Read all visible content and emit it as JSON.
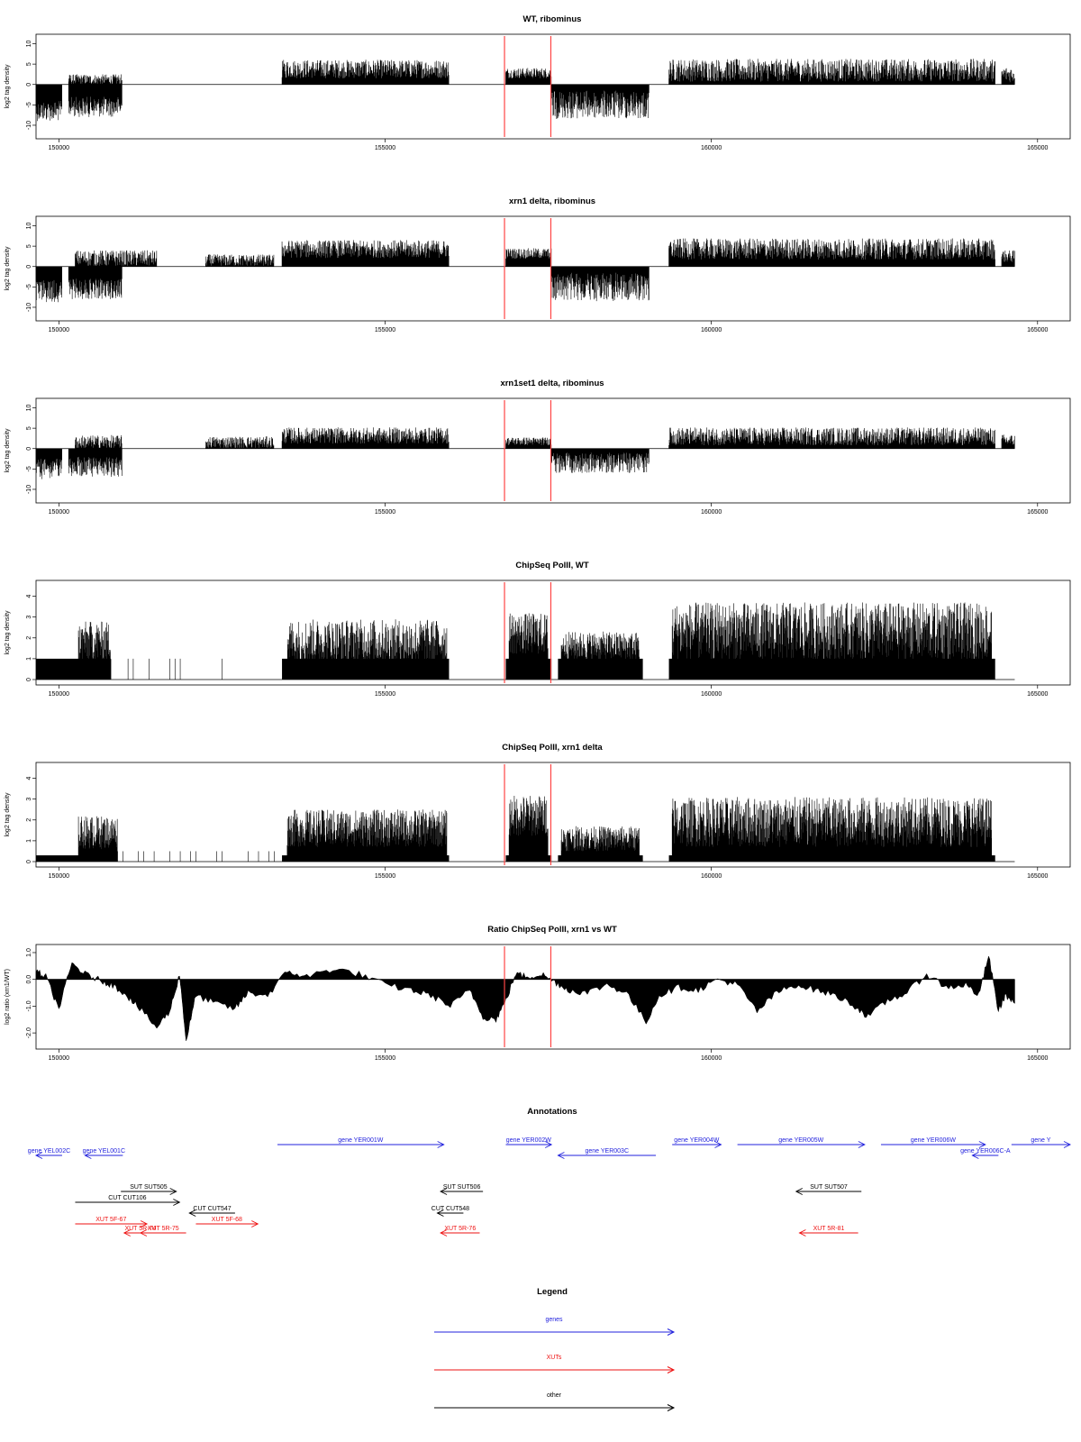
{
  "panels": [
    {
      "title": "WT, ribominus",
      "ylabel": "log2 tag density",
      "type": "signed_bars",
      "yticks": [
        "10",
        "5",
        "0",
        "-5",
        "-10"
      ],
      "ytick_values": [
        10,
        5,
        0,
        -5,
        -10
      ],
      "ylim": [
        -12,
        11
      ],
      "xticks": [
        "150000",
        "155000",
        "160000",
        "165000"
      ],
      "xlim": [
        149650,
        165500
      ]
    },
    {
      "title": "xrn1 delta, ribominus",
      "ylabel": "log2 tag density",
      "type": "signed_bars",
      "yticks": [
        "10",
        "5",
        "0",
        "-5",
        "-10"
      ],
      "ytick_values": [
        10,
        5,
        0,
        -5,
        -10
      ],
      "ylim": [
        -12,
        11
      ],
      "xticks": [
        "150000",
        "155000",
        "160000",
        "165000"
      ],
      "xlim": [
        149650,
        165500
      ]
    },
    {
      "title": "xrn1set1 delta, ribominus",
      "ylabel": "log2 tag density",
      "type": "signed_bars",
      "yticks": [
        "10",
        "5",
        "0",
        "-5",
        "-10"
      ],
      "ytick_values": [
        10,
        5,
        0,
        -5,
        -10
      ],
      "ylim": [
        -12,
        11
      ],
      "xticks": [
        "150000",
        "155000",
        "160000",
        "165000"
      ],
      "xlim": [
        149650,
        165500
      ]
    },
    {
      "title": "ChipSeq PolII, WT",
      "ylabel": "log2 tag density",
      "type": "positive_bars",
      "yticks": [
        "4",
        "3",
        "2",
        "1",
        "0"
      ],
      "ytick_values": [
        4,
        3,
        2,
        1,
        0
      ],
      "ylim": [
        0,
        4.5
      ],
      "xticks": [
        "150000",
        "155000",
        "160000",
        "165000"
      ],
      "xlim": [
        149650,
        165500
      ]
    },
    {
      "title": "ChipSeq PolII, xrn1 delta",
      "ylabel": "log2 tag density",
      "type": "positive_bars",
      "yticks": [
        "4",
        "3",
        "2",
        "1",
        "0"
      ],
      "ytick_values": [
        4,
        3,
        2,
        1,
        0
      ],
      "ylim": [
        0,
        4.5
      ],
      "xticks": [
        "150000",
        "155000",
        "160000",
        "165000"
      ],
      "xlim": [
        149650,
        165500
      ]
    },
    {
      "title": "Ratio ChipSeq PolII, xrn1 vs WT",
      "ylabel": "log2 ratio (xrn1/WT)",
      "type": "ratio_area",
      "yticks": [
        "1.0",
        "0.0",
        "-1.0",
        "-2.0"
      ],
      "ytick_values": [
        1,
        0,
        -1,
        -2
      ],
      "ylim": [
        -2.4,
        1.1
      ],
      "xticks": [
        "150000",
        "155000",
        "160000",
        "165000"
      ],
      "xlim": [
        149650,
        165500
      ]
    }
  ],
  "chart_data": [
    {
      "type": "bar",
      "title": "WT, ribominus",
      "ylabel": "log2 tag density",
      "ylim": [
        -12,
        11
      ],
      "segments": [
        {
          "start": 149650,
          "end": 150050,
          "sign": -1,
          "level": 6.5,
          "noise": 2.5
        },
        {
          "start": 150150,
          "end": 150970,
          "sign": -1,
          "level": 5.5,
          "noise": 2.5
        },
        {
          "start": 150150,
          "end": 150970,
          "sign": 1,
          "level": 1.2,
          "noise": 1.3
        },
        {
          "start": 153420,
          "end": 155980,
          "sign": 1,
          "level": 3.8,
          "noise": 2.3
        },
        {
          "start": 156850,
          "end": 157550,
          "sign": 1,
          "level": 2.8,
          "noise": 1.3
        },
        {
          "start": 157550,
          "end": 159050,
          "sign": -1,
          "level": 5.0,
          "noise": 3.5
        },
        {
          "start": 159350,
          "end": 164350,
          "sign": 1,
          "level": 3.5,
          "noise": 2.8
        },
        {
          "start": 164450,
          "end": 164650,
          "sign": 1,
          "level": 2.5,
          "noise": 2.0
        }
      ],
      "marker_lines": [
        156830,
        157540
      ]
    },
    {
      "type": "bar",
      "title": "xrn1 delta, ribominus",
      "ylabel": "log2 tag density",
      "ylim": [
        -12,
        11
      ],
      "segments": [
        {
          "start": 149650,
          "end": 150050,
          "sign": -1,
          "level": 6.0,
          "noise": 2.8
        },
        {
          "start": 150150,
          "end": 150970,
          "sign": -1,
          "level": 5.5,
          "noise": 2.5
        },
        {
          "start": 150250,
          "end": 151500,
          "sign": 1,
          "level": 2.0,
          "noise": 2.0
        },
        {
          "start": 152250,
          "end": 153300,
          "sign": 1,
          "level": 1.5,
          "noise": 1.5
        },
        {
          "start": 153420,
          "end": 155980,
          "sign": 1,
          "level": 4.3,
          "noise": 2.2
        },
        {
          "start": 156850,
          "end": 157550,
          "sign": 1,
          "level": 3.2,
          "noise": 1.3
        },
        {
          "start": 157550,
          "end": 159050,
          "sign": -1,
          "level": 5.0,
          "noise": 3.5
        },
        {
          "start": 159350,
          "end": 164350,
          "sign": 1,
          "level": 4.3,
          "noise": 2.6
        },
        {
          "start": 164450,
          "end": 164650,
          "sign": 1,
          "level": 2.5,
          "noise": 1.5
        }
      ],
      "marker_lines": [
        156830,
        157540
      ]
    },
    {
      "type": "bar",
      "title": "xrn1set1 delta, ribominus",
      "ylabel": "log2 tag density",
      "ylim": [
        -12,
        11
      ],
      "segments": [
        {
          "start": 149650,
          "end": 150050,
          "sign": -1,
          "level": 5.0,
          "noise": 2.5
        },
        {
          "start": 150150,
          "end": 150970,
          "sign": -1,
          "level": 4.5,
          "noise": 2.5
        },
        {
          "start": 150250,
          "end": 150970,
          "sign": 1,
          "level": 1.5,
          "noise": 1.8
        },
        {
          "start": 152250,
          "end": 153300,
          "sign": 1,
          "level": 1.5,
          "noise": 1.5
        },
        {
          "start": 153420,
          "end": 155980,
          "sign": 1,
          "level": 3.2,
          "noise": 2.0
        },
        {
          "start": 156850,
          "end": 157550,
          "sign": 1,
          "level": 1.8,
          "noise": 1.0
        },
        {
          "start": 157550,
          "end": 159050,
          "sign": -1,
          "level": 3.5,
          "noise": 2.5
        },
        {
          "start": 159350,
          "end": 164350,
          "sign": 1,
          "level": 3.0,
          "noise": 2.2
        },
        {
          "start": 164450,
          "end": 164650,
          "sign": 1,
          "level": 2.0,
          "noise": 1.5
        }
      ],
      "marker_lines": [
        156830,
        157540
      ]
    },
    {
      "type": "bar",
      "title": "ChipSeq PolII, WT",
      "ylabel": "log2 tag density",
      "ylim": [
        0,
        4.5
      ],
      "baseline_blocks": [
        {
          "start": 149650,
          "end": 150800,
          "level": 1.0
        },
        {
          "start": 153420,
          "end": 155980,
          "level": 1.0
        },
        {
          "start": 156850,
          "end": 157550,
          "level": 1.0
        },
        {
          "start": 157650,
          "end": 158950,
          "level": 1.0
        },
        {
          "start": 159350,
          "end": 164350,
          "level": 1.0
        }
      ],
      "segments": [
        {
          "start": 150300,
          "end": 150800,
          "level": 1.8,
          "noise": 1.0
        },
        {
          "start": 153500,
          "end": 155950,
          "level": 1.8,
          "noise": 1.1
        },
        {
          "start": 156900,
          "end": 157500,
          "level": 2.2,
          "noise": 1.0
        },
        {
          "start": 157700,
          "end": 158900,
          "level": 1.6,
          "noise": 0.7
        },
        {
          "start": 159400,
          "end": 164300,
          "level": 2.3,
          "noise": 1.4
        }
      ],
      "marker_lines": [
        156830,
        157540
      ]
    },
    {
      "type": "bar",
      "title": "ChipSeq PolII, xrn1 delta",
      "ylabel": "log2 tag density",
      "ylim": [
        0,
        4.5
      ],
      "baseline_blocks": [
        {
          "start": 149650,
          "end": 150800,
          "level": 0.3
        },
        {
          "start": 153420,
          "end": 155980,
          "level": 0.3
        },
        {
          "start": 156850,
          "end": 157550,
          "level": 0.3
        },
        {
          "start": 157650,
          "end": 158950,
          "level": 0.3
        },
        {
          "start": 159350,
          "end": 164350,
          "level": 0.3
        }
      ],
      "segments": [
        {
          "start": 150300,
          "end": 150900,
          "level": 1.4,
          "noise": 0.8
        },
        {
          "start": 153500,
          "end": 155950,
          "level": 1.6,
          "noise": 0.9
        },
        {
          "start": 156900,
          "end": 157500,
          "level": 2.2,
          "noise": 1.0
        },
        {
          "start": 157700,
          "end": 158900,
          "level": 1.1,
          "noise": 0.6
        },
        {
          "start": 159400,
          "end": 164300,
          "level": 1.9,
          "noise": 1.2
        }
      ],
      "marker_lines": [
        156830,
        157540
      ]
    },
    {
      "type": "area",
      "title": "Ratio ChipSeq PolII, xrn1 vs WT",
      "ylabel": "log2 ratio (xrn1/WT)",
      "ylim": [
        -2.4,
        1.1
      ],
      "x": [
        149650,
        149800,
        150000,
        150200,
        150400,
        150600,
        150800,
        151000,
        151200,
        151500,
        151700,
        151850,
        151950,
        152100,
        152400,
        152700,
        152900,
        153200,
        153500,
        153800,
        154200,
        154600,
        155000,
        155400,
        155700,
        156000,
        156300,
        156500,
        156700,
        156850,
        157000,
        157200,
        157400,
        157600,
        157800,
        158100,
        158400,
        158700,
        159000,
        159200,
        159500,
        159800,
        160100,
        160400,
        160700,
        161000,
        161300,
        161600,
        161900,
        162200,
        162400,
        162700,
        163000,
        163300,
        163600,
        163900,
        164100,
        164250,
        164400,
        164500,
        164650
      ],
      "y": [
        0.3,
        0.1,
        -1.1,
        0.6,
        0.2,
        0.0,
        -0.2,
        -0.5,
        -1.0,
        -1.8,
        -1.2,
        0.2,
        -2.3,
        -0.6,
        -0.9,
        -1.1,
        -0.5,
        -0.6,
        0.3,
        0.1,
        0.4,
        0.2,
        -0.2,
        -0.4,
        -0.6,
        -1.0,
        -0.4,
        -1.4,
        -1.5,
        -0.8,
        0.2,
        0.1,
        0.2,
        -0.1,
        -0.4,
        -0.5,
        -0.2,
        -0.5,
        -1.6,
        -0.6,
        -0.3,
        -0.4,
        0.0,
        -0.2,
        -1.2,
        -0.5,
        -0.2,
        -0.4,
        -0.6,
        -1.0,
        -1.4,
        -0.8,
        -0.5,
        0.2,
        -0.3,
        -0.2,
        -0.6,
        0.9,
        -1.2,
        -0.6,
        -0.9
      ],
      "marker_lines": [
        156830,
        157540
      ]
    }
  ],
  "annotations": {
    "title": "Annotations",
    "items": [
      {
        "label": "gene YEL002C",
        "start": 149650,
        "end": 150050,
        "dir": "left",
        "row": 0,
        "color": "#2222dd"
      },
      {
        "label": "gene YEL001C",
        "start": 150400,
        "end": 150980,
        "dir": "left",
        "row": 0,
        "color": "#2222dd"
      },
      {
        "label": "gene YER001W",
        "start": 153350,
        "end": 155900,
        "dir": "right",
        "row": -1,
        "color": "#2222dd"
      },
      {
        "label": "gene YER002W",
        "start": 156850,
        "end": 157550,
        "dir": "right",
        "row": -1,
        "color": "#2222dd"
      },
      {
        "label": "gene YER003C",
        "start": 157650,
        "end": 159150,
        "dir": "left",
        "row": 0,
        "color": "#2222dd"
      },
      {
        "label": "gene YER004W",
        "start": 159400,
        "end": 160150,
        "dir": "right",
        "row": -1,
        "color": "#2222dd"
      },
      {
        "label": "gene YER005W",
        "start": 160400,
        "end": 162350,
        "dir": "right",
        "row": -1,
        "color": "#2222dd"
      },
      {
        "label": "gene YER006W",
        "start": 162600,
        "end": 164200,
        "dir": "right",
        "row": -1,
        "color": "#2222dd"
      },
      {
        "label": "gene YER006C-A",
        "start": 164000,
        "end": 164400,
        "dir": "left",
        "row": 0,
        "color": "#2222dd"
      },
      {
        "label": "gene Y",
        "start": 164600,
        "end": 165500,
        "dir": "right",
        "row": -1,
        "color": "#2222dd"
      },
      {
        "label": "SUT SUT505",
        "start": 150950,
        "end": 151800,
        "dir": "right",
        "row": 3,
        "color": "#000000"
      },
      {
        "label": "CUT CUT106",
        "start": 150250,
        "end": 151850,
        "dir": "right",
        "row": 4,
        "color": "#000000"
      },
      {
        "label": "CUT CUT547",
        "start": 152000,
        "end": 152700,
        "dir": "left",
        "row": 5,
        "color": "#000000"
      },
      {
        "label": "SUT SUT506",
        "start": 155850,
        "end": 156500,
        "dir": "left",
        "row": 3,
        "color": "#000000"
      },
      {
        "label": "CUT CUT548",
        "start": 155800,
        "end": 156200,
        "dir": "left",
        "row": 5,
        "color": "#000000"
      },
      {
        "label": "SUT SUT507",
        "start": 161300,
        "end": 162300,
        "dir": "left",
        "row": 3,
        "color": "#000000"
      },
      {
        "label": "XUT 5F-67",
        "start": 150250,
        "end": 151350,
        "dir": "right",
        "row": 6,
        "color": "#ee1111"
      },
      {
        "label": "XUT 5R-74",
        "start": 151000,
        "end": 151500,
        "dir": "left",
        "row": 7,
        "color": "#ee1111"
      },
      {
        "label": "XUT 5R-75",
        "start": 151250,
        "end": 151950,
        "dir": "left",
        "row": 7,
        "color": "#ee1111"
      },
      {
        "label": "XUT 5F-68",
        "start": 152100,
        "end": 153050,
        "dir": "right",
        "row": 6,
        "color": "#ee1111"
      },
      {
        "label": "XUT 5R-76",
        "start": 155850,
        "end": 156450,
        "dir": "left",
        "row": 7,
        "color": "#ee1111"
      },
      {
        "label": "XUT 5R-81",
        "start": 161350,
        "end": 162250,
        "dir": "left",
        "row": 7,
        "color": "#ee1111"
      }
    ]
  },
  "legend": {
    "title": "Legend",
    "entries": [
      {
        "label": "genes",
        "color": "#2222dd"
      },
      {
        "label": "XUTs",
        "color": "#ee1111"
      },
      {
        "label": "other",
        "color": "#000000"
      }
    ]
  },
  "colors": {
    "marker": "#ff4444",
    "bars": "#000000"
  }
}
